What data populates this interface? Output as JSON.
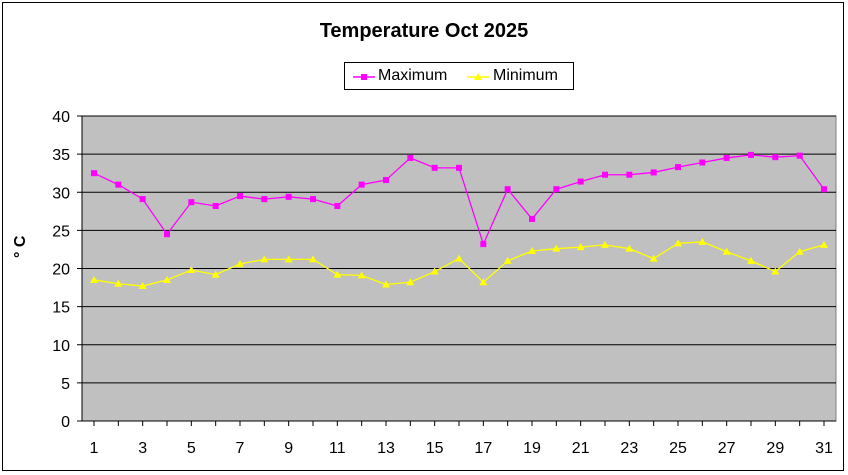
{
  "chart_data": {
    "type": "line",
    "title": "Temperature Oct 2025",
    "ylabel": "° C",
    "xlabel": "",
    "ylim": [
      0,
      40
    ],
    "yticks": [
      0,
      5,
      10,
      15,
      20,
      25,
      30,
      35,
      40
    ],
    "xticks": [
      1,
      3,
      5,
      7,
      9,
      11,
      13,
      15,
      17,
      19,
      21,
      23,
      25,
      27,
      29,
      31
    ],
    "x": [
      1,
      2,
      3,
      4,
      5,
      6,
      7,
      8,
      9,
      10,
      11,
      12,
      13,
      14,
      15,
      16,
      17,
      18,
      19,
      20,
      21,
      22,
      23,
      24,
      25,
      26,
      27,
      28,
      29,
      30,
      31
    ],
    "grid": true,
    "legend": "top-center",
    "background": "#c0c0c0",
    "series": [
      {
        "name": "Maximum",
        "color": "#ff00ff",
        "marker": "square",
        "values": [
          32.5,
          31.0,
          29.1,
          24.5,
          28.7,
          28.2,
          29.5,
          29.1,
          29.4,
          29.1,
          28.2,
          31.0,
          31.6,
          34.5,
          33.2,
          33.2,
          23.2,
          30.4,
          26.5,
          30.4,
          31.4,
          32.3,
          32.3,
          32.6,
          33.3,
          33.9,
          34.5,
          34.9,
          34.6,
          34.8,
          30.4
        ]
      },
      {
        "name": "Minimum",
        "color": "#ffff00",
        "marker": "triangle",
        "values": [
          18.5,
          18.0,
          17.7,
          18.5,
          19.8,
          19.2,
          20.6,
          21.2,
          21.2,
          21.2,
          19.2,
          19.1,
          17.9,
          18.2,
          19.6,
          21.3,
          18.2,
          21.0,
          22.3,
          22.6,
          22.8,
          23.1,
          22.6,
          21.3,
          23.3,
          23.5,
          22.2,
          21.0,
          19.6,
          22.2,
          23.1
        ]
      }
    ]
  }
}
